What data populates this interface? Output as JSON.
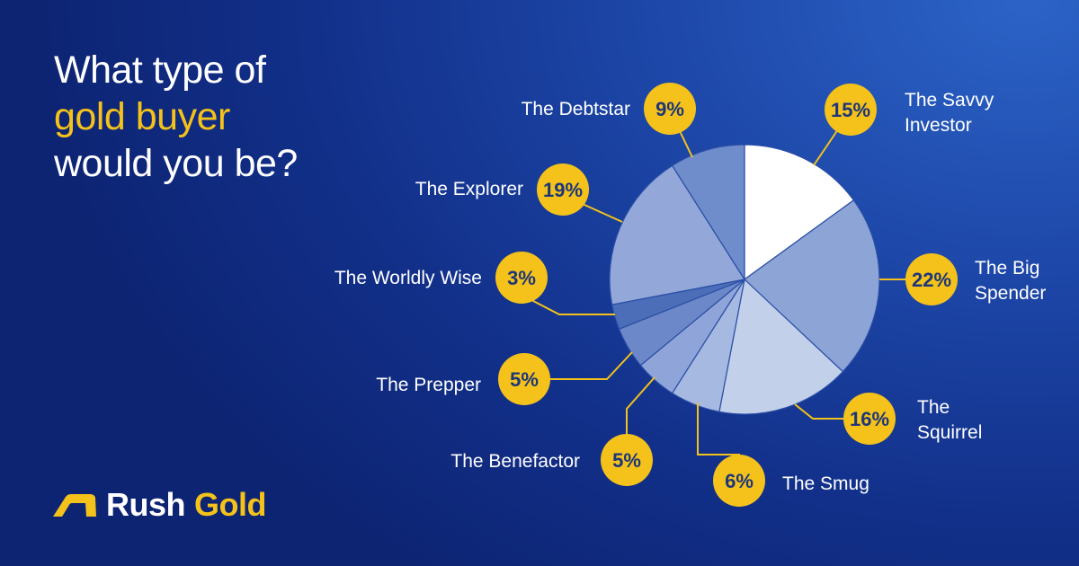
{
  "headline": {
    "line1": "What type of",
    "line2": "gold buyer",
    "line3": "would you be?"
  },
  "brand": {
    "icon": "roof-arrow-logo-icon",
    "word1": "Rush",
    "word2": "Gold",
    "color_gold": "#f4c21a"
  },
  "chart_data": {
    "type": "pie",
    "categories": [
      "The Savvy Investor",
      "The Big Spender",
      "The Squirrel",
      "The Smug",
      "The Benefactor",
      "The Prepper",
      "The Worldly Wise",
      "The Explorer",
      "The Debtstar"
    ],
    "values": [
      15,
      22,
      16,
      6,
      5,
      5,
      3,
      19,
      9
    ],
    "data_labels": [
      "15%",
      "22%",
      "16%",
      "6%",
      "5%",
      "5%",
      "3%",
      "19%",
      "9%"
    ],
    "label_lines": [
      [
        "The Savvy",
        "Investor"
      ],
      [
        "The Big",
        "Spender"
      ],
      [
        "The",
        "Squirrel"
      ],
      [
        "The Smug"
      ],
      [
        "The Benefactor"
      ],
      [
        "The Prepper"
      ],
      [
        "The Worldly Wise"
      ],
      [
        "The Explorer"
      ],
      [
        "The Debtstar"
      ]
    ],
    "slice_colors": [
      "#ffffff",
      "#8ca4d6",
      "#c3d0ea",
      "#a6b9e1",
      "#8fa4d8",
      "#6d88c8",
      "#4c6db7",
      "#93a8d9",
      "#6f8ccb"
    ],
    "badge_color": "#f4c21a",
    "unit": "%"
  }
}
